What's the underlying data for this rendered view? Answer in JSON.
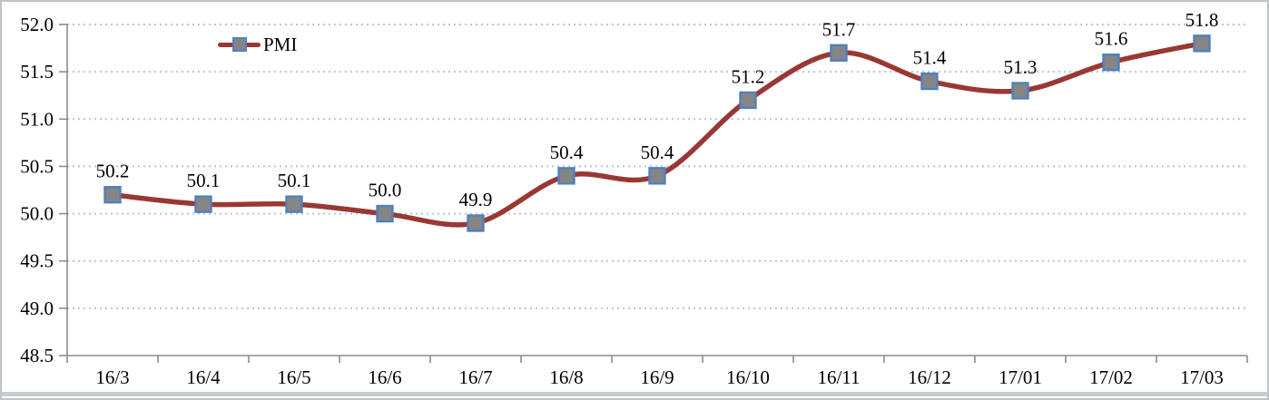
{
  "chart_data": {
    "type": "line",
    "title": "",
    "categories": [
      "16/3",
      "16/4",
      "16/5",
      "16/6",
      "16/7",
      "16/8",
      "16/9",
      "16/10",
      "16/11",
      "16/12",
      "17/01",
      "17/02",
      "17/03"
    ],
    "series": [
      {
        "name": "PMI",
        "values": [
          50.2,
          50.1,
          50.1,
          50.0,
          49.9,
          50.4,
          50.4,
          51.2,
          51.7,
          51.4,
          51.3,
          51.6,
          51.8
        ]
      }
    ],
    "data_labels": [
      "50.2",
      "50.1",
      "50.1",
      "50.0",
      "49.9",
      "50.4",
      "50.4",
      "51.2",
      "51.7",
      "51.4",
      "51.3",
      "51.6",
      "51.8"
    ],
    "ylim": [
      48.5,
      52.0
    ],
    "ytick_step": 0.5,
    "ytick_labels": [
      "48.5",
      "49.0",
      "49.5",
      "50.0",
      "50.5",
      "51.0",
      "51.5",
      "52.0"
    ],
    "xlabel": "",
    "ylabel": "",
    "grid": "horizontal-dotted",
    "line_smooth": true,
    "legend": {
      "position": "top-left-inside",
      "label": "PMI"
    },
    "colors": {
      "line": "#993832",
      "marker_fill": "#858585",
      "marker_border": "#4f81bd",
      "gridline": "#b3c6de",
      "axis": "#8c8c8c",
      "text": "#000000"
    }
  }
}
